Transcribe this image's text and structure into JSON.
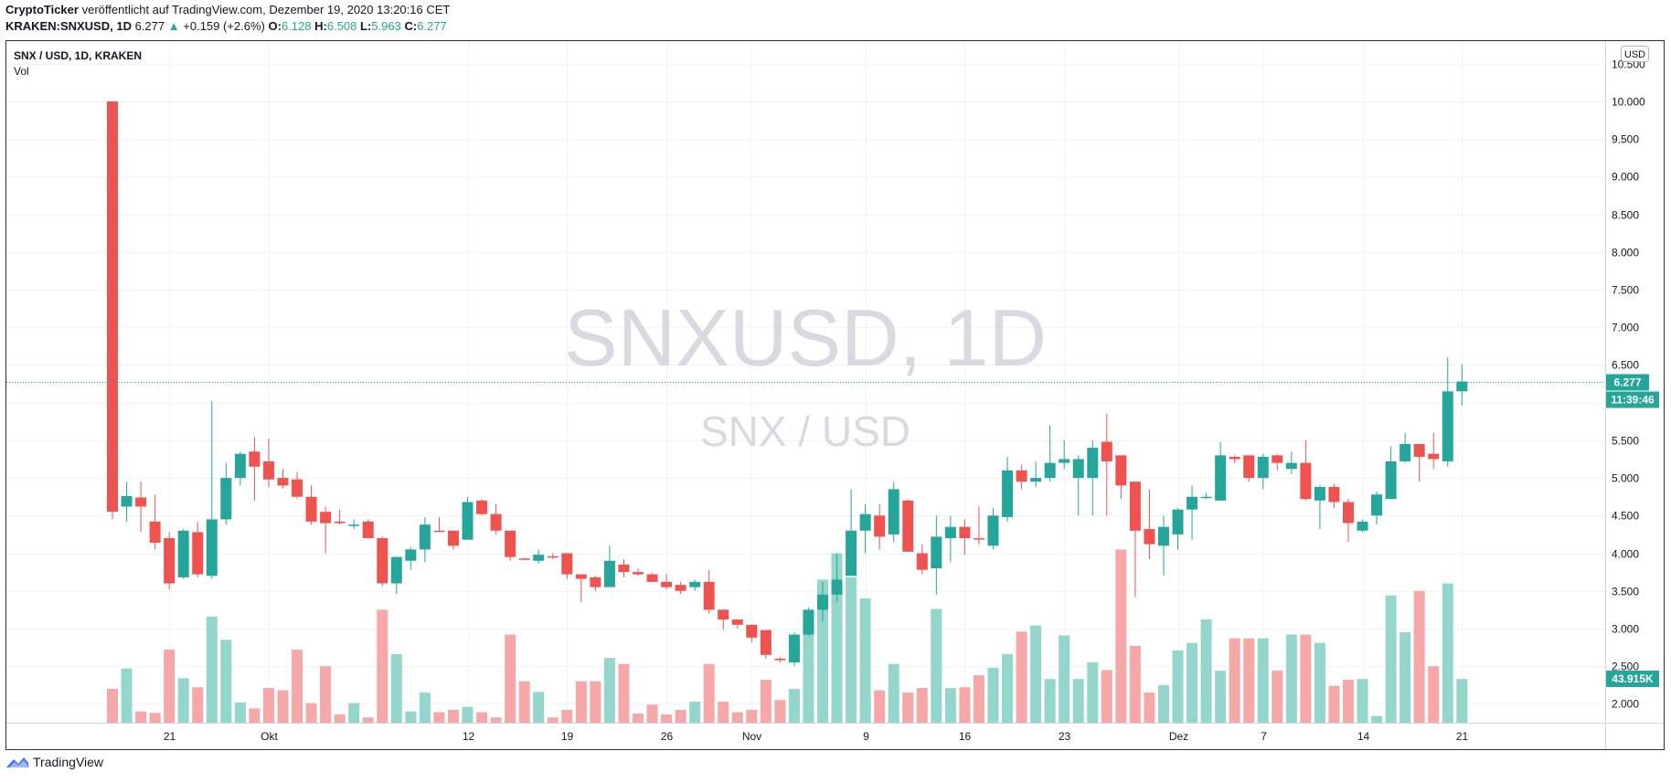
{
  "header": {
    "publisher": "CryptoTicker",
    "published_text": "veröffentlicht auf TradingView.com, Dezember 19, 2020 13:20:16 CET",
    "symbol": "KRAKEN:SNXUSD, 1D",
    "last": "6.277",
    "change_arrow": "▲",
    "change": "+0.159 (+2.6%)",
    "open_label": "O:",
    "open": "6.128",
    "high_label": "H:",
    "high": "6.508",
    "low_label": "L:",
    "low": "5.963",
    "close_label": "C:",
    "close": "6.277"
  },
  "legend": {
    "title": "SNX / USD, 1D, KRAKEN",
    "volume_label": "Vol"
  },
  "watermark": {
    "symbol": "SNXUSD, 1D",
    "pair": "SNX / USD"
  },
  "currency_badge": "USD",
  "price_badge": "6.277",
  "countdown_badge": "11:39:46",
  "volume_badge": "43.915K",
  "footer": {
    "brand": "TradingView"
  },
  "colors": {
    "up": "#26a69a",
    "down": "#ef5350",
    "up_vol": "#94d5cc",
    "down_vol": "#f6a8a8"
  },
  "chart_data": {
    "type": "candlestick",
    "price_range": [
      1.75,
      10.8
    ],
    "y_ticks": [
      "10.500",
      "10.000",
      "9.500",
      "9.000",
      "8.500",
      "8.000",
      "7.500",
      "7.000",
      "6.500",
      "6.000",
      "5.500",
      "5.000",
      "4.500",
      "4.000",
      "3.500",
      "3.000",
      "2.500",
      "2.000"
    ],
    "x_labels": [
      {
        "i": 4,
        "label": "21"
      },
      {
        "i": 11,
        "label": "Okt"
      },
      {
        "i": 25,
        "label": "12"
      },
      {
        "i": 32,
        "label": "19"
      },
      {
        "i": 39,
        "label": "26"
      },
      {
        "i": 45,
        "label": "Nov"
      },
      {
        "i": 53,
        "label": "9"
      },
      {
        "i": 60,
        "label": "16"
      },
      {
        "i": 67,
        "label": "23"
      },
      {
        "i": 75,
        "label": "Dez"
      },
      {
        "i": 81,
        "label": "7"
      },
      {
        "i": 88,
        "label": "14"
      },
      {
        "i": 95,
        "label": "21"
      }
    ],
    "current_price": 6.277,
    "candles": [
      [
        10.0,
        10.0,
        4.45,
        4.55,
        2.2,
        "d"
      ],
      [
        4.62,
        4.95,
        4.42,
        4.76,
        2.47,
        "u"
      ],
      [
        4.74,
        4.95,
        4.28,
        4.62,
        1.9,
        "d"
      ],
      [
        4.42,
        4.78,
        4.05,
        4.14,
        1.88,
        "d"
      ],
      [
        4.2,
        4.28,
        3.52,
        3.6,
        2.72,
        "d"
      ],
      [
        3.68,
        4.32,
        3.66,
        4.3,
        2.34,
        "u"
      ],
      [
        4.28,
        4.42,
        3.68,
        3.72,
        2.22,
        "d"
      ],
      [
        3.7,
        6.02,
        3.66,
        4.45,
        3.16,
        "u"
      ],
      [
        4.45,
        5.2,
        4.38,
        5.0,
        2.85,
        "u"
      ],
      [
        5.0,
        5.35,
        4.9,
        5.32,
        2.02,
        "u"
      ],
      [
        5.35,
        5.55,
        4.7,
        5.15,
        1.94,
        "d"
      ],
      [
        5.22,
        5.52,
        4.88,
        4.98,
        2.21,
        "d"
      ],
      [
        5.0,
        5.12,
        4.86,
        4.9,
        2.18,
        "d"
      ],
      [
        4.98,
        5.08,
        4.72,
        4.75,
        2.72,
        "d"
      ],
      [
        4.75,
        4.9,
        4.38,
        4.42,
        2.01,
        "d"
      ],
      [
        4.55,
        4.62,
        4.0,
        4.4,
        2.5,
        "d"
      ],
      [
        4.42,
        4.58,
        4.38,
        4.4,
        1.86,
        "d"
      ],
      [
        4.38,
        4.45,
        4.32,
        4.38,
        2.01,
        "u"
      ],
      [
        4.42,
        4.45,
        4.2,
        4.2,
        1.82,
        "d"
      ],
      [
        4.2,
        4.22,
        3.56,
        3.6,
        3.25,
        "d"
      ],
      [
        3.6,
        3.96,
        3.46,
        3.95,
        2.66,
        "u"
      ],
      [
        3.9,
        4.08,
        3.78,
        4.05,
        1.9,
        "u"
      ],
      [
        4.05,
        4.48,
        3.88,
        4.38,
        2.15,
        "u"
      ],
      [
        4.3,
        4.48,
        4.28,
        4.3,
        1.89,
        "d"
      ],
      [
        4.3,
        4.3,
        4.05,
        4.1,
        1.92,
        "d"
      ],
      [
        4.18,
        4.75,
        4.18,
        4.68,
        1.96,
        "u"
      ],
      [
        4.7,
        4.72,
        4.5,
        4.52,
        1.89,
        "d"
      ],
      [
        4.52,
        4.65,
        4.25,
        4.3,
        1.82,
        "d"
      ],
      [
        4.3,
        4.3,
        3.9,
        3.95,
        2.92,
        "d"
      ],
      [
        3.92,
        3.94,
        3.92,
        3.93,
        2.3,
        "d"
      ],
      [
        3.9,
        4.05,
        3.86,
        3.98,
        2.16,
        "u"
      ],
      [
        3.95,
        4.0,
        3.92,
        3.96,
        1.82,
        "d"
      ],
      [
        4.0,
        4.0,
        3.66,
        3.72,
        1.92,
        "d"
      ],
      [
        3.72,
        3.72,
        3.35,
        3.66,
        2.3,
        "d"
      ],
      [
        3.68,
        3.7,
        3.5,
        3.55,
        2.3,
        "d"
      ],
      [
        3.55,
        4.1,
        3.55,
        3.9,
        2.61,
        "u"
      ],
      [
        3.85,
        3.92,
        3.68,
        3.75,
        2.53,
        "d"
      ],
      [
        3.75,
        3.8,
        3.7,
        3.72,
        1.87,
        "d"
      ],
      [
        3.72,
        3.74,
        3.62,
        3.62,
        1.99,
        "d"
      ],
      [
        3.62,
        3.72,
        3.52,
        3.55,
        1.86,
        "d"
      ],
      [
        3.58,
        3.62,
        3.46,
        3.5,
        1.92,
        "d"
      ],
      [
        3.55,
        3.65,
        3.5,
        3.62,
        2.03,
        "u"
      ],
      [
        3.62,
        3.78,
        3.2,
        3.25,
        2.53,
        "d"
      ],
      [
        3.25,
        3.25,
        2.98,
        3.12,
        2.03,
        "d"
      ],
      [
        3.12,
        3.12,
        3.0,
        3.05,
        1.89,
        "d"
      ],
      [
        3.05,
        3.05,
        2.82,
        2.88,
        1.92,
        "d"
      ],
      [
        2.98,
        2.98,
        2.6,
        2.65,
        2.32,
        "d"
      ],
      [
        2.6,
        2.62,
        2.55,
        2.58,
        2.05,
        "d"
      ],
      [
        2.55,
        2.95,
        2.5,
        2.92,
        2.2,
        "u"
      ],
      [
        2.92,
        3.28,
        2.9,
        3.25,
        3.2,
        "u"
      ],
      [
        3.25,
        3.62,
        3.1,
        3.45,
        3.65,
        "u"
      ],
      [
        3.45,
        4.0,
        3.35,
        3.65,
        4.0,
        "u"
      ],
      [
        3.7,
        4.85,
        3.7,
        4.3,
        3.68,
        "u"
      ],
      [
        4.3,
        4.65,
        4.0,
        4.52,
        3.4,
        "u"
      ],
      [
        4.5,
        4.65,
        4.05,
        4.22,
        2.18,
        "d"
      ],
      [
        4.25,
        4.95,
        4.15,
        4.85,
        2.53,
        "u"
      ],
      [
        4.7,
        4.72,
        4.02,
        4.02,
        2.15,
        "d"
      ],
      [
        4.0,
        4.12,
        3.72,
        3.78,
        2.21,
        "d"
      ],
      [
        3.8,
        4.5,
        3.45,
        4.22,
        3.26,
        "u"
      ],
      [
        4.2,
        4.5,
        3.88,
        4.35,
        2.21,
        "u"
      ],
      [
        4.35,
        4.45,
        3.98,
        4.2,
        2.22,
        "d"
      ],
      [
        4.2,
        4.62,
        4.12,
        4.2,
        2.38,
        "d"
      ],
      [
        4.1,
        4.6,
        4.05,
        4.5,
        2.48,
        "u"
      ],
      [
        4.48,
        5.28,
        4.42,
        5.1,
        2.66,
        "u"
      ],
      [
        5.1,
        5.18,
        4.85,
        4.95,
        2.96,
        "d"
      ],
      [
        4.95,
        5.22,
        4.88,
        5.0,
        3.04,
        "u"
      ],
      [
        5.0,
        5.7,
        4.95,
        5.2,
        2.33,
        "u"
      ],
      [
        5.2,
        5.5,
        5.12,
        5.25,
        2.91,
        "u"
      ],
      [
        5.25,
        5.3,
        4.5,
        5.0,
        2.33,
        "u"
      ],
      [
        5.0,
        5.5,
        4.5,
        5.4,
        2.55,
        "u"
      ],
      [
        5.48,
        5.85,
        4.5,
        5.22,
        2.45,
        "d"
      ],
      [
        5.3,
        5.3,
        4.72,
        4.9,
        4.05,
        "d"
      ],
      [
        4.95,
        4.95,
        3.42,
        4.3,
        2.77,
        "d"
      ],
      [
        4.32,
        4.85,
        3.92,
        4.12,
        2.15,
        "d"
      ],
      [
        4.1,
        4.5,
        3.7,
        4.35,
        2.25,
        "u"
      ],
      [
        4.25,
        4.6,
        4.05,
        4.58,
        2.71,
        "u"
      ],
      [
        4.58,
        4.9,
        4.18,
        4.75,
        2.81,
        "u"
      ],
      [
        4.75,
        4.8,
        4.72,
        4.75,
        3.12,
        "u"
      ],
      [
        4.7,
        5.48,
        4.7,
        5.3,
        2.44,
        "u"
      ],
      [
        5.28,
        5.3,
        5.2,
        5.25,
        2.87,
        "d"
      ],
      [
        5.3,
        5.3,
        4.95,
        5.0,
        2.87,
        "d"
      ],
      [
        5.0,
        5.32,
        4.85,
        5.28,
        2.87,
        "u"
      ],
      [
        5.3,
        5.32,
        5.1,
        5.2,
        2.44,
        "d"
      ],
      [
        5.12,
        5.35,
        5.05,
        5.2,
        2.92,
        "u"
      ],
      [
        5.2,
        5.5,
        4.7,
        4.72,
        2.92,
        "d"
      ],
      [
        4.7,
        4.9,
        4.32,
        4.88,
        2.81,
        "u"
      ],
      [
        4.88,
        4.92,
        4.6,
        4.68,
        2.24,
        "d"
      ],
      [
        4.68,
        4.72,
        4.15,
        4.4,
        2.32,
        "d"
      ],
      [
        4.3,
        4.45,
        4.28,
        4.42,
        2.33,
        "u"
      ],
      [
        4.5,
        4.82,
        4.38,
        4.78,
        1.84,
        "u"
      ],
      [
        4.72,
        5.42,
        4.72,
        5.22,
        3.44,
        "u"
      ],
      [
        5.22,
        5.6,
        5.2,
        5.45,
        2.95,
        "u"
      ],
      [
        5.45,
        5.45,
        4.95,
        5.28,
        3.5,
        "d"
      ],
      [
        5.32,
        5.6,
        5.12,
        5.25,
        2.5,
        "d"
      ],
      [
        5.22,
        6.6,
        5.15,
        6.15,
        3.6,
        "u"
      ],
      [
        6.15,
        6.51,
        5.96,
        6.28,
        2.33,
        "u"
      ]
    ]
  }
}
